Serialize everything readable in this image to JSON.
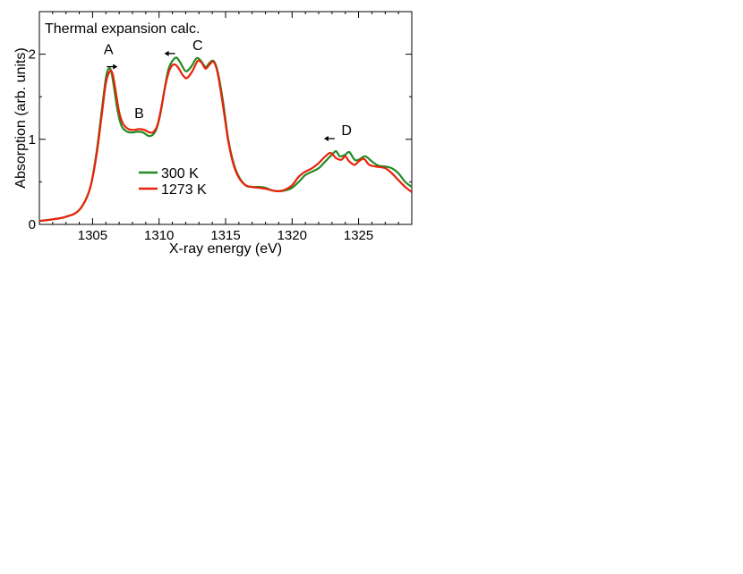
{
  "chart_data": {
    "type": "line",
    "title": "Thermal expansion calc.",
    "xlabel": "X-ray energy (eV)",
    "ylabel": "Absorption (arb. units)",
    "xlim": [
      1301,
      1329
    ],
    "ylim": [
      0,
      2.5
    ],
    "x_ticks": [
      {
        "value": 1305,
        "label": "1305"
      },
      {
        "value": 1310,
        "label": "1310"
      },
      {
        "value": 1315,
        "label": "1315"
      },
      {
        "value": 1320,
        "label": "1320"
      },
      {
        "value": 1325,
        "label": "1325"
      }
    ],
    "y_ticks": [
      {
        "value": 0,
        "label": "0"
      },
      {
        "value": 1,
        "label": "1"
      },
      {
        "value": 2,
        "label": "2"
      }
    ],
    "grid": false,
    "legend_position": "center-left",
    "series": [
      {
        "name": "300 K",
        "color": "#228b22",
        "points": [
          [
            1301,
            0.04
          ],
          [
            1302,
            0.06
          ],
          [
            1303,
            0.09
          ],
          [
            1304,
            0.17
          ],
          [
            1304.8,
            0.42
          ],
          [
            1305.3,
            0.85
          ],
          [
            1305.7,
            1.35
          ],
          [
            1306.0,
            1.72
          ],
          [
            1306.2,
            1.83
          ],
          [
            1306.4,
            1.8
          ],
          [
            1306.6,
            1.62
          ],
          [
            1306.9,
            1.32
          ],
          [
            1307.2,
            1.15
          ],
          [
            1307.6,
            1.09
          ],
          [
            1308.0,
            1.08
          ],
          [
            1308.4,
            1.09
          ],
          [
            1308.8,
            1.08
          ],
          [
            1309.2,
            1.04
          ],
          [
            1309.5,
            1.05
          ],
          [
            1309.8,
            1.12
          ],
          [
            1310.1,
            1.3
          ],
          [
            1310.4,
            1.58
          ],
          [
            1310.7,
            1.82
          ],
          [
            1311.0,
            1.92
          ],
          [
            1311.3,
            1.96
          ],
          [
            1311.6,
            1.9
          ],
          [
            1312.0,
            1.8
          ],
          [
            1312.4,
            1.85
          ],
          [
            1312.8,
            1.95
          ],
          [
            1313.1,
            1.93
          ],
          [
            1313.5,
            1.85
          ],
          [
            1313.8,
            1.9
          ],
          [
            1314.1,
            1.92
          ],
          [
            1314.4,
            1.8
          ],
          [
            1314.8,
            1.45
          ],
          [
            1315.2,
            1.0
          ],
          [
            1315.6,
            0.72
          ],
          [
            1316.0,
            0.56
          ],
          [
            1316.5,
            0.46
          ],
          [
            1317.0,
            0.44
          ],
          [
            1317.5,
            0.44
          ],
          [
            1318.0,
            0.43
          ],
          [
            1318.5,
            0.4
          ],
          [
            1319.0,
            0.39
          ],
          [
            1319.5,
            0.4
          ],
          [
            1320.0,
            0.43
          ],
          [
            1320.5,
            0.5
          ],
          [
            1321.0,
            0.58
          ],
          [
            1321.5,
            0.62
          ],
          [
            1322.0,
            0.66
          ],
          [
            1322.5,
            0.74
          ],
          [
            1323.0,
            0.82
          ],
          [
            1323.3,
            0.86
          ],
          [
            1323.6,
            0.8
          ],
          [
            1324.0,
            0.82
          ],
          [
            1324.3,
            0.85
          ],
          [
            1324.7,
            0.76
          ],
          [
            1325.0,
            0.76
          ],
          [
            1325.5,
            0.8
          ],
          [
            1326.0,
            0.74
          ],
          [
            1326.5,
            0.69
          ],
          [
            1327.0,
            0.68
          ],
          [
            1327.5,
            0.66
          ],
          [
            1328.0,
            0.6
          ],
          [
            1328.5,
            0.5
          ],
          [
            1329,
            0.44
          ]
        ]
      },
      {
        "name": "1273 K",
        "color": "#e8220a",
        "points": [
          [
            1301,
            0.04
          ],
          [
            1302,
            0.06
          ],
          [
            1303,
            0.09
          ],
          [
            1304,
            0.17
          ],
          [
            1304.8,
            0.42
          ],
          [
            1305.3,
            0.82
          ],
          [
            1305.7,
            1.3
          ],
          [
            1306.0,
            1.66
          ],
          [
            1306.3,
            1.8
          ],
          [
            1306.5,
            1.77
          ],
          [
            1306.7,
            1.6
          ],
          [
            1307.0,
            1.32
          ],
          [
            1307.3,
            1.18
          ],
          [
            1307.7,
            1.12
          ],
          [
            1308.1,
            1.11
          ],
          [
            1308.5,
            1.12
          ],
          [
            1308.9,
            1.11
          ],
          [
            1309.3,
            1.08
          ],
          [
            1309.6,
            1.09
          ],
          [
            1309.9,
            1.18
          ],
          [
            1310.2,
            1.4
          ],
          [
            1310.5,
            1.65
          ],
          [
            1310.8,
            1.82
          ],
          [
            1311.1,
            1.88
          ],
          [
            1311.4,
            1.85
          ],
          [
            1311.8,
            1.75
          ],
          [
            1312.1,
            1.72
          ],
          [
            1312.5,
            1.8
          ],
          [
            1312.9,
            1.92
          ],
          [
            1313.2,
            1.9
          ],
          [
            1313.5,
            1.83
          ],
          [
            1313.8,
            1.88
          ],
          [
            1314.1,
            1.91
          ],
          [
            1314.4,
            1.78
          ],
          [
            1314.8,
            1.4
          ],
          [
            1315.2,
            0.98
          ],
          [
            1315.6,
            0.7
          ],
          [
            1316.0,
            0.55
          ],
          [
            1316.5,
            0.46
          ],
          [
            1317.0,
            0.44
          ],
          [
            1317.5,
            0.43
          ],
          [
            1318.0,
            0.42
          ],
          [
            1318.5,
            0.4
          ],
          [
            1319.0,
            0.39
          ],
          [
            1319.5,
            0.41
          ],
          [
            1320.0,
            0.46
          ],
          [
            1320.5,
            0.56
          ],
          [
            1321.0,
            0.62
          ],
          [
            1321.5,
            0.66
          ],
          [
            1322.0,
            0.72
          ],
          [
            1322.5,
            0.8
          ],
          [
            1322.9,
            0.84
          ],
          [
            1323.3,
            0.78
          ],
          [
            1323.7,
            0.76
          ],
          [
            1324.0,
            0.8
          ],
          [
            1324.3,
            0.74
          ],
          [
            1324.7,
            0.7
          ],
          [
            1325.0,
            0.74
          ],
          [
            1325.4,
            0.77
          ],
          [
            1325.8,
            0.7
          ],
          [
            1326.3,
            0.68
          ],
          [
            1327.0,
            0.66
          ],
          [
            1327.5,
            0.6
          ],
          [
            1328.0,
            0.52
          ],
          [
            1328.5,
            0.44
          ],
          [
            1329,
            0.38
          ]
        ]
      }
    ],
    "annotations": [
      {
        "text": "A",
        "x": 1306.2,
        "y": 2.0,
        "arrow": "right"
      },
      {
        "text": "B",
        "x": 1308.5,
        "y": 1.25,
        "arrow": "none"
      },
      {
        "text": "C",
        "x": 1312.9,
        "y": 2.05,
        "arrow": "left",
        "arrow_x": 1310.8
      },
      {
        "text": "D",
        "x": 1324.1,
        "y": 1.05,
        "arrow": "left",
        "arrow_x": 1322.8
      }
    ]
  }
}
